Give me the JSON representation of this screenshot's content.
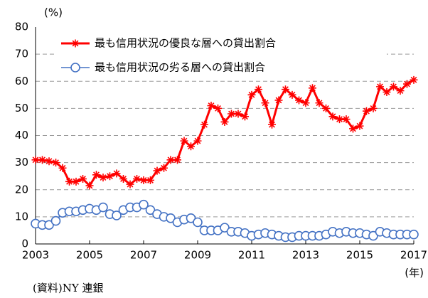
{
  "chart_data": {
    "type": "line",
    "y_unit": "(%)",
    "x_unit": "(年)",
    "source": "(資料)NY 連銀",
    "categories": [
      "2003",
      null,
      null,
      null,
      null,
      null,
      null,
      null,
      "2005",
      null,
      null,
      null,
      null,
      null,
      null,
      null,
      "2007",
      null,
      null,
      null,
      null,
      null,
      null,
      null,
      "2009",
      null,
      null,
      null,
      null,
      null,
      null,
      null,
      "2011",
      null,
      null,
      null,
      null,
      null,
      null,
      null,
      "2013",
      null,
      null,
      null,
      null,
      null,
      null,
      null,
      "2015",
      null,
      null,
      null,
      null,
      null,
      null,
      null,
      "2017"
    ],
    "series": [
      {
        "name": "最も信用状況の優良な層への貸出割合",
        "color": "#ff0000",
        "marker": "star",
        "values": [
          31,
          31,
          30.5,
          30,
          28,
          23,
          23,
          24,
          21.5,
          25.5,
          24.5,
          25,
          26,
          24,
          22,
          24,
          23.5,
          23.5,
          27,
          28,
          31,
          31,
          38,
          36,
          38,
          44,
          51,
          50,
          45,
          48,
          48,
          47,
          55,
          57,
          52,
          44,
          53,
          57,
          55,
          53,
          52,
          57.5,
          52,
          50,
          47,
          46,
          46,
          42.5,
          43.5,
          49,
          50,
          58,
          56,
          58,
          56.5,
          59,
          60.5
        ]
      },
      {
        "name": "最も信用状況の劣る層への貸出割合",
        "color": "#4472c4",
        "marker": "circle",
        "values": [
          7.5,
          7,
          7,
          8.5,
          11.5,
          12,
          12,
          12.5,
          13,
          12.5,
          13.5,
          11,
          10.5,
          12.5,
          13.5,
          13.5,
          14.5,
          12.5,
          11,
          10,
          9.5,
          8,
          9,
          9.5,
          8,
          5,
          5,
          5,
          6,
          4.5,
          4.5,
          4,
          3,
          3.5,
          4,
          3.5,
          3,
          2.5,
          2.5,
          3,
          3,
          3,
          3,
          3.5,
          4.5,
          4,
          4.5,
          4,
          4,
          3.5,
          3,
          4.5,
          4,
          3.5,
          3.5,
          3.5,
          3.5
        ]
      }
    ],
    "ylim": [
      0,
      80
    ],
    "yticks": [
      0,
      10,
      20,
      30,
      40,
      50,
      60,
      70,
      80
    ],
    "grid": true
  }
}
